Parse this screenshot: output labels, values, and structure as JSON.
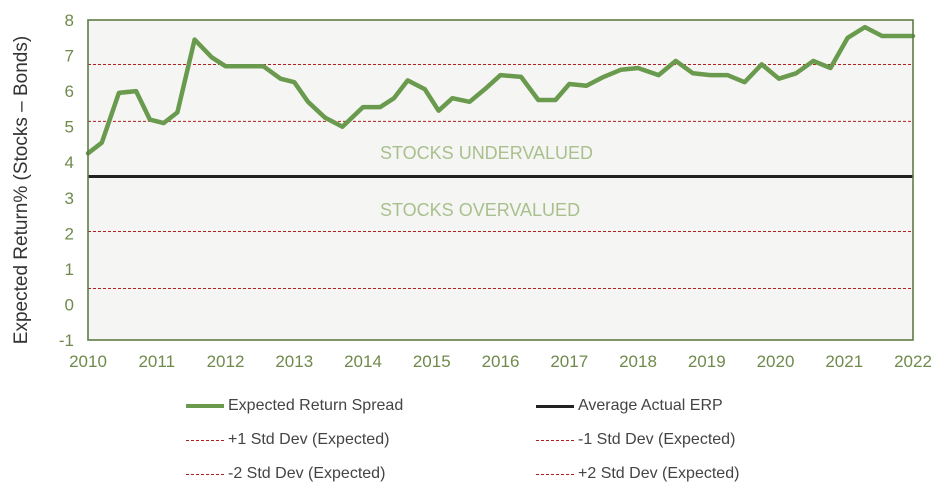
{
  "chart_data": {
    "type": "line",
    "title": "",
    "xlabel": "",
    "ylabel": "Expected Return% (Stocks – Bonds)",
    "xlim": [
      2010,
      2022
    ],
    "ylim": [
      -1,
      8
    ],
    "x_ticks": [
      "2010",
      "2011",
      "2012",
      "2013",
      "2014",
      "2015",
      "2016",
      "2017",
      "2018",
      "2019",
      "2020",
      "2021",
      "2022"
    ],
    "y_ticks": [
      "-1",
      "0",
      "1",
      "2",
      "3",
      "4",
      "5",
      "6",
      "7",
      "8"
    ],
    "grid": false,
    "legend_position": "bottom",
    "annotations": {
      "upper": "STOCKS UNDERVALUED",
      "lower": "STOCKS OVERVALUED"
    },
    "series": [
      {
        "name": "Expected Return Spread",
        "color": "#6a9a4e",
        "x": [
          2010.0,
          2010.2,
          2010.45,
          2010.7,
          2010.9,
          2011.1,
          2011.3,
          2011.55,
          2011.8,
          2012.0,
          2012.3,
          2012.55,
          2012.8,
          2013.0,
          2013.2,
          2013.45,
          2013.7,
          2014.0,
          2014.25,
          2014.45,
          2014.65,
          2014.9,
          2015.1,
          2015.3,
          2015.55,
          2015.8,
          2016.0,
          2016.3,
          2016.55,
          2016.8,
          2017.0,
          2017.25,
          2017.5,
          2017.75,
          2018.0,
          2018.3,
          2018.55,
          2018.8,
          2019.05,
          2019.3,
          2019.55,
          2019.8,
          2020.05,
          2020.3,
          2020.55,
          2020.8,
          2021.05,
          2021.3,
          2021.55,
          2021.8,
          2022.0
        ],
        "values": [
          4.25,
          4.55,
          5.95,
          6.0,
          5.2,
          5.1,
          5.4,
          7.45,
          6.95,
          6.7,
          6.7,
          6.7,
          6.35,
          6.25,
          5.7,
          5.25,
          5.0,
          5.55,
          5.55,
          5.8,
          6.3,
          6.05,
          5.45,
          5.8,
          5.7,
          6.1,
          6.45,
          6.4,
          5.75,
          5.75,
          6.2,
          6.15,
          6.4,
          6.6,
          6.65,
          6.45,
          6.85,
          6.5,
          6.45,
          6.45,
          6.25,
          6.75,
          6.35,
          6.5,
          6.85,
          6.65,
          7.5,
          7.8,
          7.55,
          7.55,
          7.55
        ]
      },
      {
        "name": "Average Actual ERP",
        "color": "#222222",
        "x": [
          2010,
          2022
        ],
        "values": [
          3.6,
          3.6
        ]
      },
      {
        "name": "+1 Std Dev (Expected)",
        "color": "#b02020",
        "x": [
          2010,
          2022
        ],
        "values": [
          6.75,
          6.75
        ]
      },
      {
        "name": "-1 Std Dev (Expected)",
        "color": "#b02020",
        "x": [
          2010,
          2022
        ],
        "values": [
          5.15,
          5.15
        ]
      },
      {
        "name": "-2 Std Dev (Expected)",
        "color": "#b02020",
        "x": [
          2010,
          2022
        ],
        "values": [
          0.45,
          0.45
        ]
      },
      {
        "name": "+2 Std Dev (Expected)",
        "color": "#b02020",
        "x": [
          2010,
          2022
        ],
        "values": [
          2.05,
          2.05
        ]
      }
    ]
  },
  "legend": {
    "expected_spread": "Expected Return Spread",
    "avg_erp": "Average Actual ERP",
    "plus1": "+1 Std Dev (Expected)",
    "minus1": "-1 Std Dev (Expected)",
    "minus2": "-2 Std Dev (Expected)",
    "plus2": "+2 Std Dev (Expected)"
  },
  "colors": {
    "plot_background": "#f5f6f3",
    "frame": "#5e7c45",
    "tick_text": "#6f8a4c",
    "annotation_text": "#a9c08e"
  }
}
